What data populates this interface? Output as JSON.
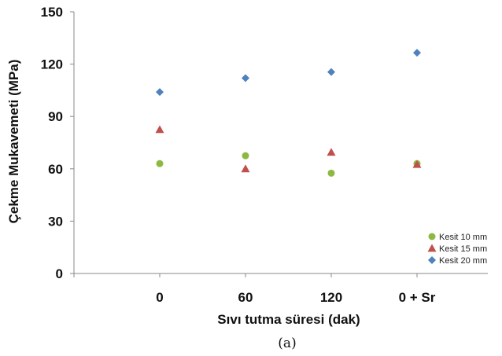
{
  "caption": "(a)",
  "chart_data": {
    "type": "scatter",
    "xlabel": "Sıvı tutma süresi (dak)",
    "ylabel": "Çekme Mukavemeti (MPa)",
    "categories": [
      "0",
      "60",
      "120",
      "0 + Sr"
    ],
    "ylim": [
      0,
      150
    ],
    "yticks": [
      0,
      30,
      60,
      90,
      120,
      150
    ],
    "grid": false,
    "legend_position": "bottom-right",
    "series": [
      {
        "name": "Kesit 10 mm",
        "marker": "circle",
        "color": "#8db943",
        "values": [
          63,
          67.5,
          57.5,
          63
        ]
      },
      {
        "name": "Kesit 15 mm",
        "marker": "triangle",
        "color": "#c0504d",
        "values": [
          82.5,
          60,
          69.5,
          62.5
        ]
      },
      {
        "name": "Kesit 20 mm",
        "marker": "diamond",
        "color": "#4f81bd",
        "values": [
          104,
          112,
          115.5,
          126.5
        ]
      }
    ]
  }
}
